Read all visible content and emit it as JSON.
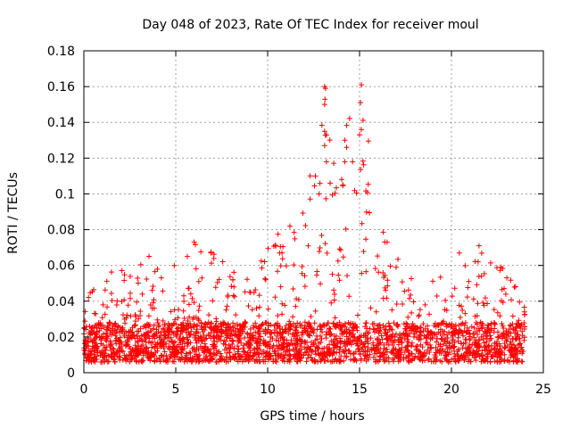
{
  "chart_data": {
    "type": "scatter",
    "title": "Day 048 of 2023, Rate Of TEC Index for receiver moul",
    "xlabel": "GPS time / hours",
    "ylabel": "ROTI / TECUs",
    "xlim": [
      0,
      25
    ],
    "ylim": [
      0,
      0.18
    ],
    "x_ticks": [
      0,
      5,
      10,
      15,
      20,
      25
    ],
    "x_tick_labels": [
      "0",
      "5",
      "10",
      "15",
      "20",
      "25"
    ],
    "y_ticks": [
      0,
      0.02,
      0.04,
      0.06,
      0.08,
      0.1,
      0.12,
      0.14,
      0.16,
      0.18
    ],
    "y_tick_labels": [
      "0",
      "0.02",
      "0.04",
      "0.06",
      "0.08",
      "0.1",
      "0.12",
      "0.14",
      "0.16",
      "0.18"
    ],
    "grid": true,
    "marker": "+",
    "marker_color": "#ff0000",
    "series": [
      {
        "name": "ROTI",
        "envelope_note": "dense band of points from 0 to 24 h; representative upper envelope",
        "upper_envelope": [
          {
            "x": 0.0,
            "y": 0.045
          },
          {
            "x": 1.0,
            "y": 0.052
          },
          {
            "x": 2.5,
            "y": 0.065
          },
          {
            "x": 3.5,
            "y": 0.069
          },
          {
            "x": 4.5,
            "y": 0.058
          },
          {
            "x": 5.5,
            "y": 0.066
          },
          {
            "x": 6.0,
            "y": 0.073
          },
          {
            "x": 7.5,
            "y": 0.066
          },
          {
            "x": 9.0,
            "y": 0.055
          },
          {
            "x": 10.0,
            "y": 0.073
          },
          {
            "x": 11.0,
            "y": 0.09
          },
          {
            "x": 12.0,
            "y": 0.09
          },
          {
            "x": 13.0,
            "y": 0.16
          },
          {
            "x": 14.0,
            "y": 0.13
          },
          {
            "x": 15.0,
            "y": 0.161
          },
          {
            "x": 16.5,
            "y": 0.073
          },
          {
            "x": 18.0,
            "y": 0.05
          },
          {
            "x": 19.5,
            "y": 0.055
          },
          {
            "x": 20.0,
            "y": 0.069
          },
          {
            "x": 21.5,
            "y": 0.071
          },
          {
            "x": 23.0,
            "y": 0.057
          },
          {
            "x": 24.0,
            "y": 0.045
          }
        ],
        "outliers": [
          {
            "x": 13.1,
            "y": 0.16
          },
          {
            "x": 13.15,
            "y": 0.159
          },
          {
            "x": 13.1,
            "y": 0.15
          },
          {
            "x": 13.1,
            "y": 0.135
          },
          {
            "x": 13.2,
            "y": 0.133
          },
          {
            "x": 13.1,
            "y": 0.127
          },
          {
            "x": 13.2,
            "y": 0.118
          },
          {
            "x": 14.2,
            "y": 0.13
          },
          {
            "x": 14.3,
            "y": 0.126
          },
          {
            "x": 14.2,
            "y": 0.118
          },
          {
            "x": 15.1,
            "y": 0.161
          },
          {
            "x": 15.05,
            "y": 0.151
          },
          {
            "x": 15.1,
            "y": 0.136
          },
          {
            "x": 15.0,
            "y": 0.133
          },
          {
            "x": 12.6,
            "y": 0.11
          },
          {
            "x": 13.4,
            "y": 0.106
          },
          {
            "x": 14.1,
            "y": 0.105
          },
          {
            "x": 12.8,
            "y": 0.1
          },
          {
            "x": 6.0,
            "y": 0.073
          },
          {
            "x": 16.5,
            "y": 0.073
          },
          {
            "x": 21.5,
            "y": 0.071
          }
        ]
      }
    ]
  }
}
